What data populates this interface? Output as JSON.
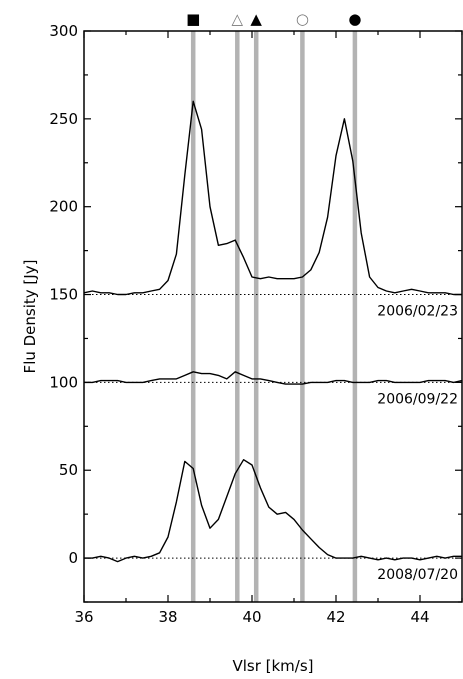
{
  "chart_data": {
    "type": "line",
    "xlabel": "Vlsr [km/s]",
    "ylabel": "Flu Density [Jy]",
    "xlim": [
      36,
      45
    ],
    "ylim": [
      -25,
      300
    ],
    "xticks": [
      36,
      38,
      40,
      42,
      44
    ],
    "yticks": [
      0,
      50,
      100,
      150,
      200,
      250,
      300
    ],
    "grid": false,
    "legend": "none",
    "x": [
      36.0,
      36.2,
      36.4,
      36.6,
      36.8,
      37.0,
      37.2,
      37.4,
      37.6,
      37.8,
      38.0,
      38.2,
      38.4,
      38.6,
      38.8,
      39.0,
      39.2,
      39.4,
      39.6,
      39.8,
      40.0,
      40.2,
      40.4,
      40.6,
      40.8,
      41.0,
      41.2,
      41.4,
      41.6,
      41.8,
      42.0,
      42.2,
      42.4,
      42.6,
      42.8,
      43.0,
      43.2,
      43.4,
      43.6,
      43.8,
      44.0,
      44.2,
      44.4,
      44.6,
      44.8,
      45.0
    ],
    "series": [
      {
        "name": "2006/02/23",
        "offset": 150,
        "values": [
          151,
          152,
          151,
          151,
          150,
          150,
          151,
          151,
          152,
          153,
          158,
          173,
          218,
          260,
          244,
          200,
          178,
          179,
          181,
          171,
          160,
          159,
          160,
          159,
          159,
          159,
          160,
          164,
          174,
          194,
          229,
          250,
          226,
          185,
          160,
          154,
          152,
          151,
          152,
          153,
          152,
          151,
          151,
          151,
          150,
          150
        ]
      },
      {
        "name": "2006/09/22",
        "offset": 100,
        "values": [
          100,
          100,
          101,
          101,
          101,
          100,
          100,
          100,
          101,
          102,
          102,
          102,
          104,
          106,
          105,
          105,
          104,
          102,
          106,
          104,
          102,
          102,
          101,
          100,
          99,
          99,
          99,
          100,
          100,
          100,
          101,
          101,
          100,
          100,
          100,
          101,
          101,
          100,
          100,
          100,
          100,
          101,
          101,
          101,
          100,
          101
        ]
      },
      {
        "name": "2008/07/20",
        "offset": 0,
        "values": [
          0,
          0,
          1,
          0,
          -2,
          0,
          1,
          0,
          1,
          3,
          12,
          32,
          55,
          51,
          30,
          17,
          22,
          35,
          48,
          56,
          53,
          40,
          29,
          25,
          26,
          22,
          16,
          11,
          6,
          2,
          0,
          0,
          0,
          1,
          0,
          -1,
          0,
          -1,
          0,
          0,
          -1,
          0,
          1,
          0,
          1,
          1
        ]
      }
    ],
    "markers": [
      {
        "symbol": "■",
        "x": 38.6,
        "color": "#000000"
      },
      {
        "symbol": "△",
        "x": 39.65,
        "color": "#7a7a7a"
      },
      {
        "symbol": "▲",
        "x": 40.1,
        "color": "#000000"
      },
      {
        "symbol": "○",
        "x": 41.2,
        "color": "#7a7a7a"
      },
      {
        "symbol": "●",
        "x": 42.45,
        "color": "#000000"
      }
    ]
  }
}
